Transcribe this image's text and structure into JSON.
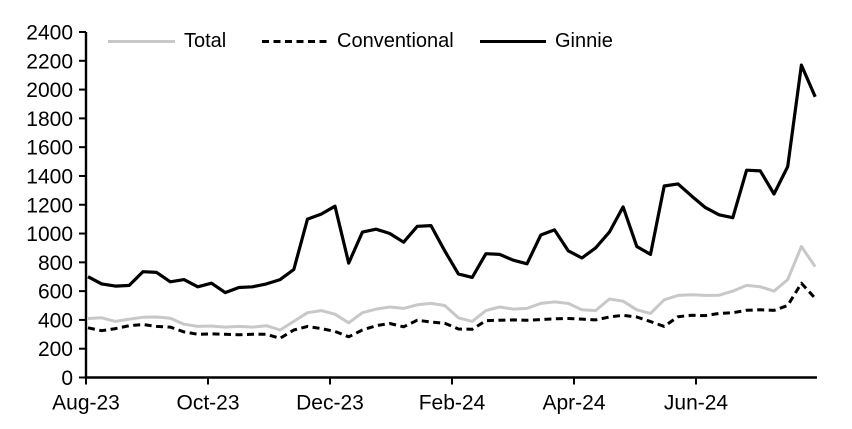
{
  "chart_data": {
    "type": "line",
    "title": "",
    "xlabel": "",
    "ylabel": "",
    "frequency": "weekly",
    "x_tick_labels": [
      "Aug-23",
      "Oct-23",
      "Dec-23",
      "Feb-24",
      "Apr-24",
      "Jun-24"
    ],
    "y_ticks": [
      0,
      200,
      400,
      600,
      800,
      1000,
      1200,
      1400,
      1600,
      1800,
      2000,
      2200,
      2400
    ],
    "ylim": [
      0,
      2400
    ],
    "grid": false,
    "legend_position": "top",
    "axis_color": "#000000",
    "series": [
      {
        "name": "Total",
        "color": "#c8c8c8",
        "dash": "solid",
        "values": [
          410,
          415,
          390,
          405,
          418,
          420,
          412,
          370,
          355,
          358,
          350,
          355,
          350,
          360,
          330,
          390,
          450,
          465,
          440,
          380,
          450,
          475,
          490,
          480,
          505,
          515,
          500,
          415,
          390,
          465,
          490,
          475,
          480,
          515,
          525,
          515,
          470,
          465,
          545,
          530,
          470,
          445,
          540,
          570,
          575,
          570,
          572,
          600,
          640,
          630,
          600,
          680,
          910,
          770
        ]
      },
      {
        "name": "Conventional",
        "color": "#000000",
        "dash": "dashed",
        "values": [
          345,
          325,
          340,
          360,
          368,
          355,
          350,
          317,
          300,
          303,
          300,
          297,
          300,
          300,
          272,
          330,
          355,
          340,
          320,
          283,
          330,
          360,
          375,
          352,
          398,
          385,
          377,
          337,
          335,
          395,
          398,
          400,
          398,
          402,
          408,
          410,
          406,
          400,
          420,
          432,
          420,
          388,
          355,
          422,
          432,
          430,
          445,
          450,
          467,
          470,
          466,
          500,
          655,
          550
        ]
      },
      {
        "name": "Ginnie",
        "color": "#000000",
        "dash": "solid",
        "values": [
          700,
          650,
          635,
          640,
          735,
          730,
          665,
          680,
          630,
          655,
          590,
          625,
          630,
          650,
          680,
          750,
          1100,
          1135,
          1190,
          795,
          1010,
          1030,
          1000,
          940,
          1050,
          1055,
          880,
          720,
          695,
          860,
          855,
          815,
          790,
          990,
          1025,
          880,
          830,
          900,
          1010,
          1185,
          910,
          855,
          1330,
          1345,
          1260,
          1180,
          1130,
          1110,
          1440,
          1435,
          1275,
          1465,
          2170,
          1950
        ]
      }
    ]
  }
}
